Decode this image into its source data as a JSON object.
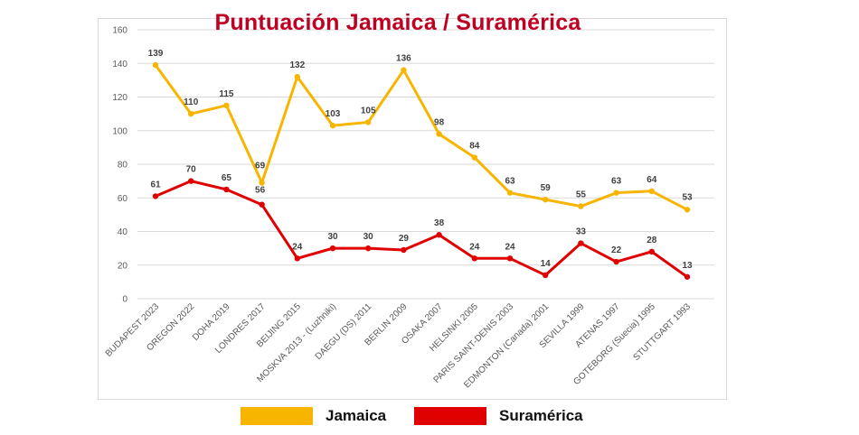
{
  "title": "Puntuación Jamaica / Suramérica",
  "colors": {
    "jamaica": "#f7b500",
    "suramerica": "#e00000",
    "title": "#c00022"
  },
  "chart_data": {
    "type": "line",
    "title": "Puntuación Jamaica / Suramérica",
    "xlabel": "",
    "ylabel": "",
    "ylim": [
      0,
      160
    ],
    "yticks": [
      0,
      20,
      40,
      60,
      80,
      100,
      120,
      140,
      160
    ],
    "grid": true,
    "legend_position": "bottom",
    "categories": [
      "BUDAPEST 2023",
      "OREGON 2022",
      "DOHA 2019",
      "LONDRES 2017",
      "BEIJING 2015",
      "MOSKVA 2013 - (Luzhniki)",
      "DAEGU (DS) 2011",
      "BERLIN 2009",
      "OSAKA 2007",
      "HELSINKI 2005",
      "PARIS SAINT-DENIS 2003",
      "EDMONTON (Canada) 2001",
      "SEVILLA 1999",
      "ATENAS 1997",
      "GOTEBORG (Suecia) 1995",
      "STUTTGART 1993"
    ],
    "series": [
      {
        "name": "Jamaica",
        "color": "#f7b500",
        "values": [
          139,
          110,
          115,
          69,
          132,
          103,
          105,
          136,
          98,
          84,
          63,
          59,
          55,
          63,
          64,
          53
        ]
      },
      {
        "name": "Suramérica",
        "color": "#e00000",
        "values": [
          61,
          70,
          65,
          56,
          24,
          30,
          30,
          29,
          38,
          24,
          24,
          14,
          33,
          22,
          28,
          13
        ]
      }
    ]
  },
  "legend": [
    {
      "label": "Jamaica",
      "color": "#f7b500"
    },
    {
      "label": "Suramérica",
      "color": "#e00000"
    }
  ]
}
